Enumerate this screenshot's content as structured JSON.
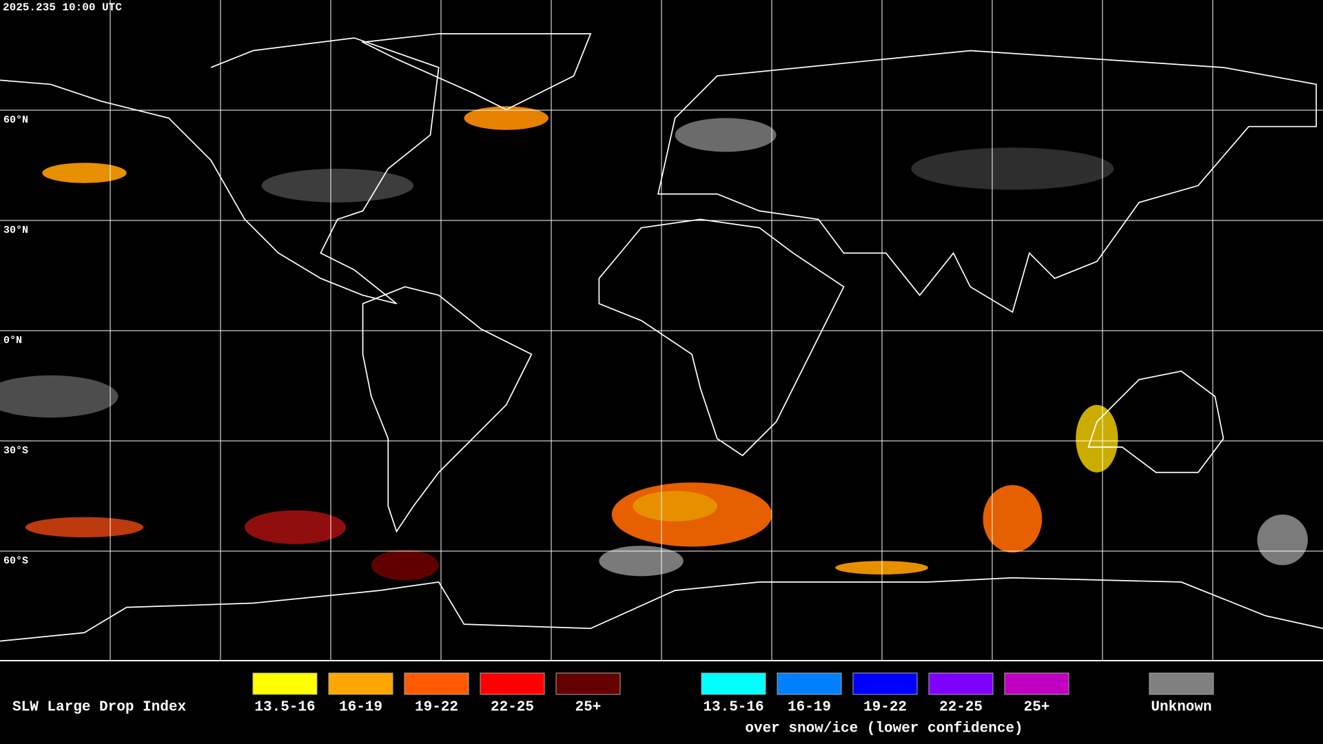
{
  "header": {
    "timestamp": "2025.235 10:00 UTC"
  },
  "map": {
    "lat_labels": [
      "60°N",
      "30°N",
      "0°N",
      "30°S",
      "60°S"
    ]
  },
  "legend": {
    "title": "SLW Large Drop Index",
    "items": [
      {
        "label": "13.5-16",
        "color": "#ffff00"
      },
      {
        "label": "16-19",
        "color": "#ffa500"
      },
      {
        "label": "19-22",
        "color": "#ff5a00"
      },
      {
        "label": "22-25",
        "color": "#ff0000"
      },
      {
        "label": "25+",
        "color": "#640000"
      }
    ],
    "snow_ice_items": [
      {
        "label": "13.5-16",
        "color": "#00ffff"
      },
      {
        "label": "16-19",
        "color": "#0080ff"
      },
      {
        "label": "19-22",
        "color": "#0000ff"
      },
      {
        "label": "22-25",
        "color": "#8000ff"
      },
      {
        "label": "25+",
        "color": "#c000c0"
      }
    ],
    "snow_ice_note": "over snow/ice (lower confidence)",
    "unknown": {
      "label": "Unknown",
      "color": "#808080"
    }
  }
}
